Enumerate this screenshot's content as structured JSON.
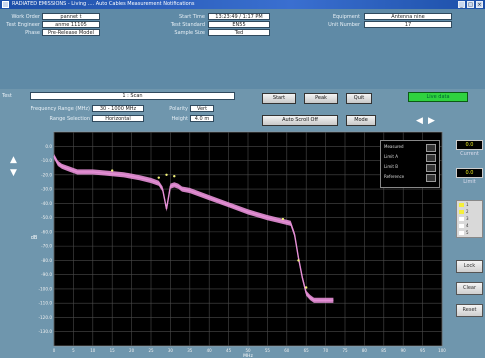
{
  "window": {
    "title": "RADIATED EMISSIONS - Living .... Auto Cables Measurement Notifications",
    "min_glyph": "_",
    "max_glyph": "□",
    "close_glyph": "×"
  },
  "info": {
    "left": [
      {
        "label": "Work Order",
        "value": "pannet t"
      },
      {
        "label": "Test Engineer",
        "value": "anme 11105"
      },
      {
        "label": "Phase",
        "value": "Pre-Release Model"
      }
    ],
    "middle": [
      {
        "label": "Start Time",
        "value": "13:23:49 / 1:17 PM"
      },
      {
        "label": "Test Standard",
        "value": "EN55"
      },
      {
        "label": "Sample Size",
        "value": "Ted"
      }
    ],
    "right": [
      {
        "label": "Equipment",
        "value": "Antenna nine"
      },
      {
        "label": "Unit Number",
        "value": "17"
      }
    ]
  },
  "controls": {
    "test_label": "Test",
    "test_value": "1 : Scan",
    "row2_label": "Frequency Range (MHz)",
    "row2_value": "30 - 1000 MHz",
    "row3_label": "Range Selection",
    "row3_value": "Horizontal",
    "polarity_label": "Polarity",
    "polarity_value": "Vert",
    "height_label": "Height",
    "height_value": "4.0 m",
    "btn_start": "Start",
    "btn_peak": "Peak",
    "btn_quit": "Quit",
    "btn_auto": "Auto Scroll Off",
    "btn_mode": "Mode",
    "status": "Live data",
    "nav_left": "◀",
    "nav_right": "▶",
    "up_arrow": "▲",
    "down_arrow": "▼",
    "side_readout_1_label": "Current",
    "side_readout_2_label": "Limit",
    "side_btn_1": "Lock",
    "side_btn_2": "Clear",
    "side_btn_3": "Reset"
  },
  "chart_data": {
    "type": "line",
    "ylabel": "dB",
    "xlabel": "MHz",
    "ylim": [
      -140,
      10
    ],
    "xlim": [
      0,
      100
    ],
    "grid": true,
    "background": "#000000",
    "line_color": "#e58fd6",
    "marker_color": "#f2f27a",
    "y_ticks": [
      "0.0",
      "-10.0",
      "-20.0",
      "-30.0",
      "-40.0",
      "-50.0",
      "-60.0",
      "-70.0",
      "-80.0",
      "-90.0",
      "-100.0",
      "-110.0",
      "-120.0",
      "-130.0"
    ],
    "x_ticks": [
      "0",
      "5",
      "10",
      "15",
      "20",
      "25",
      "30",
      "35",
      "40",
      "45",
      "50",
      "55",
      "60",
      "65",
      "70",
      "75",
      "80",
      "85",
      "90",
      "95",
      "100"
    ],
    "legend": [
      "Measured",
      "Limit A",
      "Limit B",
      "Reference"
    ],
    "series": [
      {
        "x": [
          0,
          1,
          2,
          3,
          4,
          6,
          10,
          14,
          18,
          22,
          25,
          27,
          28,
          29,
          30,
          31,
          32,
          33,
          35,
          40,
          45,
          50,
          55,
          58,
          61,
          62,
          63,
          64,
          65,
          66,
          67,
          70,
          72
        ],
        "y": [
          -7,
          -12,
          -14,
          -15,
          -16,
          -18,
          -18,
          -19,
          -20,
          -22,
          -24,
          -26,
          -30,
          -44,
          -28,
          -27,
          -28,
          -30,
          -31,
          -36,
          -41,
          -46,
          -50,
          -52,
          -54,
          -62,
          -78,
          -92,
          -103,
          -106,
          -108,
          -108,
          -108
        ]
      }
    ],
    "markers": [
      {
        "x": 15,
        "y": -17
      },
      {
        "x": 27,
        "y": -22
      },
      {
        "x": 29,
        "y": -20
      },
      {
        "x": 31,
        "y": -21
      },
      {
        "x": 59,
        "y": -51
      },
      {
        "x": 63,
        "y": -80
      },
      {
        "x": 65,
        "y": -99
      }
    ],
    "side_readouts": [
      "0.0",
      "0.0"
    ],
    "side_legend": [
      "1",
      "2",
      "3",
      "4",
      "5"
    ]
  }
}
